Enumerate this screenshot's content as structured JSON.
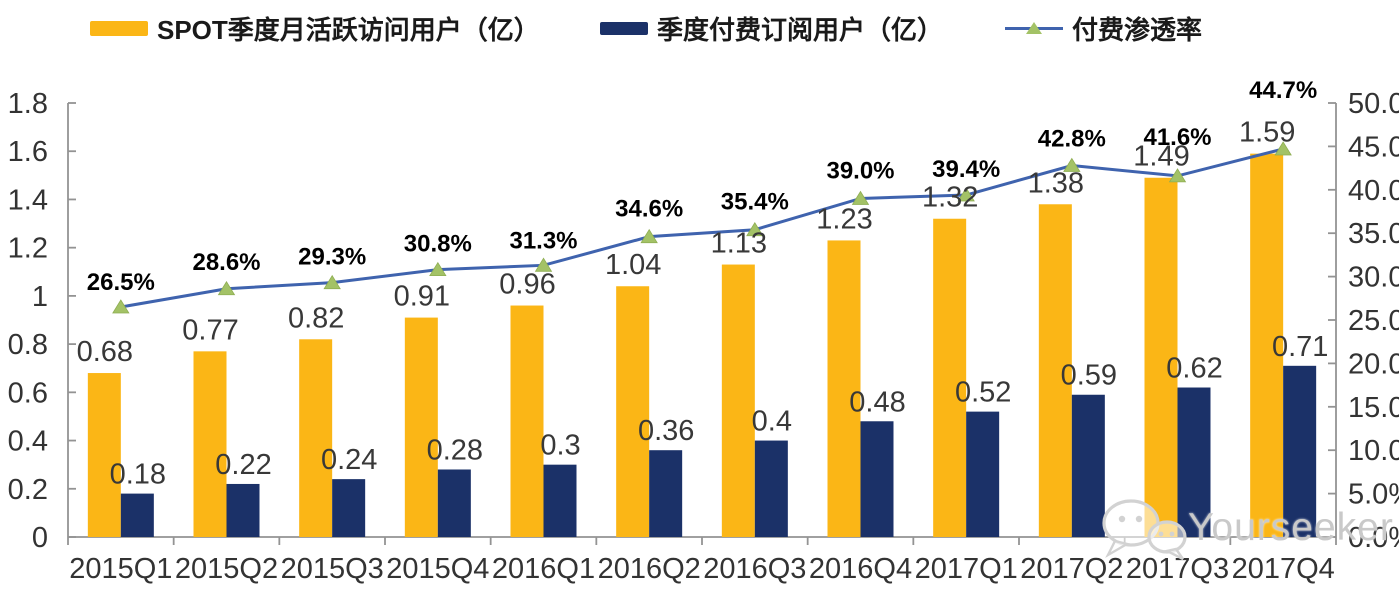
{
  "legend": {
    "items": [
      {
        "label": "SPOT季度月活跃访问用户（亿）",
        "swatch": "bar",
        "color": "#FBB616"
      },
      {
        "label": "季度付费订阅用户（亿）",
        "swatch": "bar",
        "color": "#1B3168"
      },
      {
        "label": "付费渗透率",
        "swatch": "line",
        "color": "#3F63AE",
        "marker_color": "#A3C266"
      }
    ]
  },
  "chart_data": {
    "type": "bar",
    "subtype": "grouped-bar-with-line-combo",
    "categories": [
      "2015Q1",
      "2015Q2",
      "2015Q3",
      "2015Q4",
      "2016Q1",
      "2016Q2",
      "2016Q3",
      "2016Q4",
      "2017Q1",
      "2017Q2",
      "2017Q3",
      "2017Q4"
    ],
    "series": [
      {
        "name": "SPOT季度月活跃访问用户（亿）",
        "type": "bar",
        "axis": "left",
        "color": "#FBB616",
        "values": [
          0.68,
          0.77,
          0.82,
          0.91,
          0.96,
          1.04,
          1.13,
          1.23,
          1.32,
          1.38,
          1.49,
          1.59
        ],
        "labels": [
          "0.68",
          "0.77",
          "0.82",
          "0.91",
          "0.96",
          "1.04",
          "1.13",
          "1.23",
          "1.32",
          "1.38",
          "1.49",
          "1.59"
        ]
      },
      {
        "name": "季度付费订阅用户（亿）",
        "type": "bar",
        "axis": "left",
        "color": "#1B3168",
        "values": [
          0.18,
          0.22,
          0.24,
          0.28,
          0.3,
          0.36,
          0.4,
          0.48,
          0.52,
          0.59,
          0.62,
          0.71
        ],
        "labels": [
          "0.18",
          "0.22",
          "0.24",
          "0.28",
          "0.3",
          "0.36",
          "0.4",
          "0.48",
          "0.52",
          "0.59",
          "0.62",
          "0.71"
        ]
      },
      {
        "name": "付费渗透率",
        "type": "line",
        "axis": "right",
        "color": "#3F63AE",
        "marker": "triangle",
        "marker_color": "#A3C266",
        "values_percent": [
          26.5,
          28.6,
          29.3,
          30.8,
          31.3,
          34.6,
          35.4,
          39.0,
          39.4,
          42.8,
          41.6,
          44.7
        ],
        "labels": [
          "26.5%",
          "28.6%",
          "29.3%",
          "30.8%",
          "31.3%",
          "34.6%",
          "35.4%",
          "39.0%",
          "39.4%",
          "42.8%",
          "41.6%",
          "44.7%"
        ]
      }
    ],
    "left_axis": {
      "min": 0,
      "max": 1.8,
      "tick_labels": [
        "0",
        "0.2",
        "0.4",
        "0.6",
        "0.8",
        "1",
        "1.2",
        "1.4",
        "1.6",
        "1.8"
      ]
    },
    "right_axis": {
      "min": 0,
      "max": 50,
      "tick_labels": [
        "0.0%",
        "5.0%",
        "10.0%",
        "15.0%",
        "20.0%",
        "25.0%",
        "30.0%",
        "35.0%",
        "40.0%",
        "45.0%",
        "50.0%"
      ]
    },
    "grid": false,
    "legend_position": "top",
    "title": "",
    "xlabel": "",
    "ylabel": ""
  },
  "watermark": {
    "text": "Yourseeker",
    "icon": "wechat-icon"
  }
}
